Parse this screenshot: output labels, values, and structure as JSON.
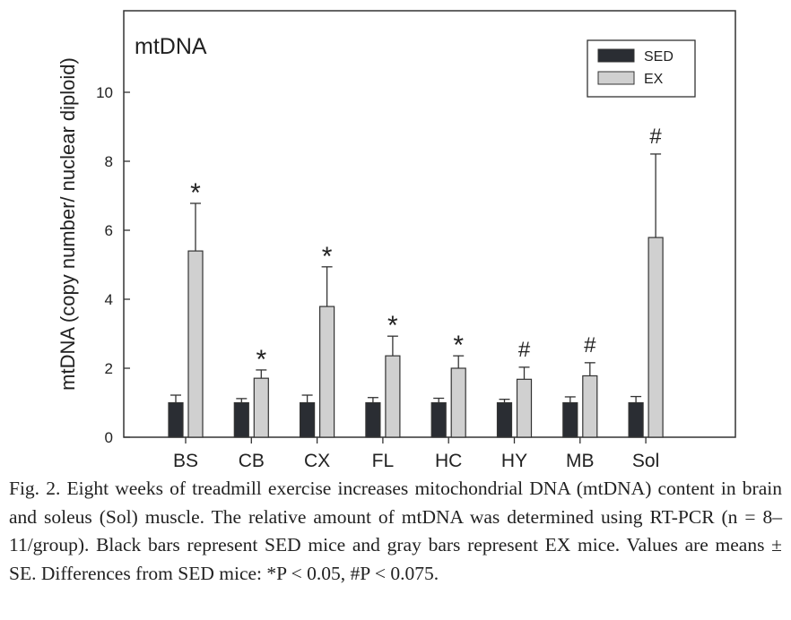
{
  "chart_data": {
    "type": "bar",
    "title": "mtDNA",
    "xlabel": "",
    "ylabel": "mtDNA (copy number/ nuclear diploid)",
    "ylim": [
      0,
      12.4
    ],
    "yticks": [
      0,
      2,
      4,
      6,
      8,
      10
    ],
    "grid": false,
    "legend_position": "top-right",
    "categories": [
      "BS",
      "CB",
      "CX",
      "FL",
      "HC",
      "HY",
      "MB",
      "Sol"
    ],
    "series": [
      {
        "name": "SED",
        "color": "#2a2d33",
        "values": [
          1.0,
          1.0,
          1.0,
          1.0,
          1.0,
          1.0,
          1.0,
          1.0
        ],
        "errors": [
          0.22,
          0.12,
          0.22,
          0.15,
          0.13,
          0.1,
          0.17,
          0.18
        ]
      },
      {
        "name": "EX",
        "color": "#d0d0d0",
        "values": [
          5.4,
          1.71,
          3.79,
          2.36,
          2.0,
          1.68,
          1.78,
          5.79
        ],
        "errors": [
          1.38,
          0.24,
          1.15,
          0.57,
          0.36,
          0.35,
          0.38,
          2.42
        ]
      }
    ],
    "annotations": [
      "*",
      "*",
      "*",
      "*",
      "*",
      "#",
      "#",
      "#"
    ]
  },
  "caption": "Fig. 2. Eight weeks of treadmill exercise increases mitochondrial DNA (mtDNA) content in brain and soleus (Sol) muscle. The relative amount of mtDNA was determined using RT-PCR (n = 8–11/group). Black bars represent SED mice and gray bars represent EX mice. Values are means ± SE. Differences from SED mice: *P < 0.05, #P < 0.075."
}
